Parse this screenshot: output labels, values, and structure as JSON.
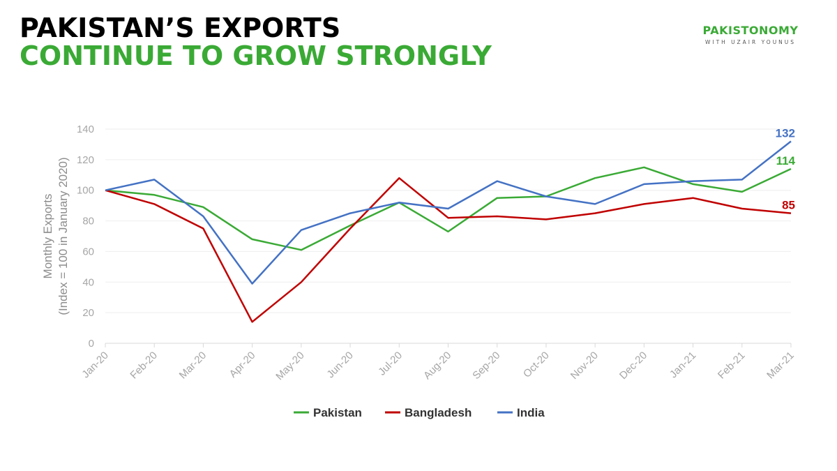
{
  "header": {
    "title_line1": "PAKISTAN’S EXPORTS",
    "title_line2": "CONTINUE TO GROW STRONGLY"
  },
  "brand": {
    "name": "PAKISTONOMY",
    "subtitle": "WITH UZAIR YOUNUS"
  },
  "colors": {
    "title_accent": "#3aaa35",
    "pakistan": "#3aaa35",
    "bangladesh": "#c00000",
    "india": "#4472c4"
  },
  "chart_data": {
    "type": "line",
    "title": "",
    "xlabel": "",
    "ylabel": [
      "Monthly Exports",
      "(Index = 100 in January 2020)"
    ],
    "ylim": [
      0,
      140
    ],
    "yticks": [
      0,
      20,
      40,
      60,
      80,
      100,
      120,
      140
    ],
    "grid": true,
    "legend_position": "bottom",
    "categories": [
      "Jan-20",
      "Feb-20",
      "Mar-20",
      "Apr-20",
      "May-20",
      "Jun-20",
      "Jul-20",
      "Aug-20",
      "Sep-20",
      "Oct-20",
      "Nov-20",
      "Dec-20",
      "Jan-21",
      "Feb-21",
      "Mar-21"
    ],
    "series": [
      {
        "name": "Pakistan",
        "color": "#3aaa35",
        "values": [
          100,
          97,
          89,
          68,
          61,
          77,
          92,
          73,
          95,
          96,
          108,
          115,
          104,
          99,
          114
        ],
        "end_label": "114"
      },
      {
        "name": "Bangladesh",
        "color": "#c00000",
        "values": [
          100,
          91,
          75,
          14,
          40,
          75,
          108,
          82,
          83,
          81,
          85,
          91,
          95,
          88,
          85
        ],
        "end_label": "85"
      },
      {
        "name": "India",
        "color": "#4472c4",
        "values": [
          100,
          107,
          83,
          39,
          74,
          85,
          92,
          88,
          106,
          96,
          91,
          104,
          106,
          107,
          132
        ],
        "end_label": "132"
      }
    ]
  }
}
